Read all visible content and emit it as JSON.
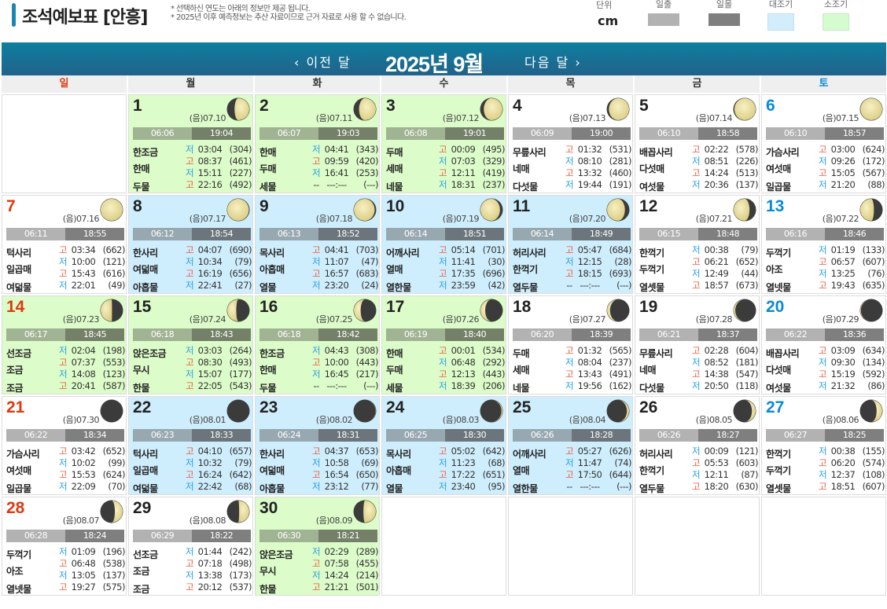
{
  "header": {
    "title": "조석예보표 [안흥]",
    "note1": "* 선택하신 연도는 아래의 정보만 제공 됩니다.",
    "note2": "* 2025년 이후 예측정보는 추산 자료이므로 근거 자료로 사용 할 수 없습니다."
  },
  "legend": {
    "unit_label": "단위",
    "unit_value": "cm",
    "sunrise_label": "일출",
    "sunset_label": "일몰",
    "spring_label": "대조기",
    "neap_label": "소조기",
    "colors": {
      "sunrise": "#b2b2b2",
      "sunset": "#7f7f7f",
      "spring": "#cfeefd",
      "neap": "#d6fcce"
    }
  },
  "nav": {
    "prev": "‹ 이전 달",
    "month": "2025년 9월",
    "next": "다음 달 ›"
  },
  "weekdays": [
    "일",
    "월",
    "화",
    "수",
    "목",
    "금",
    "토"
  ],
  "lunar_prefix": "(음)",
  "colors": {
    "high": "#ea5a3c",
    "low": "#2b9fe2",
    "sunday": "#e0380e",
    "saturday": "#0a8ad6"
  },
  "weeks": [
    [
      null,
      {
        "day": "1",
        "lunar": "07.10",
        "sunrise": "06:06",
        "sunset": "19:04",
        "period": "small",
        "names": [
          "한조금",
          "한매",
          "두물"
        ],
        "tides": [
          [
            "저",
            "03:04",
            "(304)"
          ],
          [
            "고",
            "08:37",
            "(461)"
          ],
          [
            "저",
            "15:11",
            "(227)"
          ],
          [
            "고",
            "22:16",
            "(492)"
          ]
        ]
      },
      {
        "day": "2",
        "lunar": "07.11",
        "sunrise": "06:07",
        "sunset": "19:03",
        "period": "small",
        "names": [
          "한매",
          "두매",
          "세물"
        ],
        "tides": [
          [
            "저",
            "04:41",
            "(343)"
          ],
          [
            "고",
            "09:59",
            "(420)"
          ],
          [
            "저",
            "16:41",
            "(253)"
          ],
          [
            "--",
            "---:---",
            "(---)"
          ]
        ]
      },
      {
        "day": "3",
        "lunar": "07.12",
        "sunrise": "06:08",
        "sunset": "19:01",
        "period": "small",
        "names": [
          "두매",
          "세매",
          "네물"
        ],
        "tides": [
          [
            "고",
            "00:09",
            "(495)"
          ],
          [
            "저",
            "07:03",
            "(329)"
          ],
          [
            "고",
            "12:11",
            "(419)"
          ],
          [
            "저",
            "18:31",
            "(237)"
          ]
        ]
      },
      {
        "day": "4",
        "lunar": "07.13",
        "sunrise": "06:09",
        "sunset": "19:00",
        "period": "",
        "names": [
          "무릎사리",
          "네매",
          "다섯물"
        ],
        "tides": [
          [
            "고",
            "01:32",
            "(531)"
          ],
          [
            "저",
            "08:10",
            "(281)"
          ],
          [
            "고",
            "13:32",
            "(460)"
          ],
          [
            "저",
            "19:44",
            "(191)"
          ]
        ]
      },
      {
        "day": "5",
        "lunar": "07.14",
        "sunrise": "06:10",
        "sunset": "18:58",
        "period": "",
        "names": [
          "배꼽사리",
          "다섯매",
          "여섯물"
        ],
        "tides": [
          [
            "고",
            "02:22",
            "(578)"
          ],
          [
            "저",
            "08:51",
            "(226)"
          ],
          [
            "고",
            "14:24",
            "(513)"
          ],
          [
            "저",
            "20:36",
            "(137)"
          ]
        ]
      },
      {
        "day": "6",
        "lunar": "07.15",
        "sunrise": "06:10",
        "sunset": "18:57",
        "period": "",
        "names": [
          "가슴사리",
          "여섯매",
          "일곱물"
        ],
        "tides": [
          [
            "고",
            "03:00",
            "(624)"
          ],
          [
            "저",
            "09:26",
            "(172)"
          ],
          [
            "고",
            "15:05",
            "(567)"
          ],
          [
            "저",
            "21:20",
            "(88)"
          ]
        ]
      }
    ],
    [
      {
        "day": "7",
        "lunar": "07.16",
        "sunrise": "06:11",
        "sunset": "18:55",
        "period": "",
        "names": [
          "턱사리",
          "일곱매",
          "여덟물"
        ],
        "tides": [
          [
            "고",
            "03:34",
            "(662)"
          ],
          [
            "저",
            "10:00",
            "(121)"
          ],
          [
            "고",
            "15:43",
            "(616)"
          ],
          [
            "저",
            "22:01",
            "(49)"
          ]
        ]
      },
      {
        "day": "8",
        "lunar": "07.17",
        "sunrise": "06:12",
        "sunset": "18:54",
        "period": "big",
        "names": [
          "한사리",
          "여덟매",
          "아홉물"
        ],
        "tides": [
          [
            "고",
            "04:07",
            "(690)"
          ],
          [
            "저",
            "10:34",
            "(79)"
          ],
          [
            "고",
            "16:19",
            "(656)"
          ],
          [
            "저",
            "22:41",
            "(27)"
          ]
        ]
      },
      {
        "day": "9",
        "lunar": "07.18",
        "sunrise": "06:13",
        "sunset": "18:52",
        "period": "big",
        "names": [
          "목사리",
          "아홉매",
          "열물"
        ],
        "tides": [
          [
            "고",
            "04:41",
            "(703)"
          ],
          [
            "저",
            "11:07",
            "(47)"
          ],
          [
            "고",
            "16:57",
            "(683)"
          ],
          [
            "저",
            "23:20",
            "(24)"
          ]
        ]
      },
      {
        "day": "10",
        "lunar": "07.19",
        "sunrise": "06:14",
        "sunset": "18:51",
        "period": "big",
        "names": [
          "어깨사리",
          "열매",
          "열한물"
        ],
        "tides": [
          [
            "고",
            "05:14",
            "(701)"
          ],
          [
            "저",
            "11:41",
            "(30)"
          ],
          [
            "고",
            "17:35",
            "(696)"
          ],
          [
            "저",
            "23:59",
            "(42)"
          ]
        ]
      },
      {
        "day": "11",
        "lunar": "07.20",
        "sunrise": "06:14",
        "sunset": "18:49",
        "period": "big",
        "names": [
          "허리사리",
          "한꺽기",
          "열두물"
        ],
        "tides": [
          [
            "고",
            "05:47",
            "(684)"
          ],
          [
            "저",
            "12:15",
            "(28)"
          ],
          [
            "고",
            "18:15",
            "(693)"
          ],
          [
            "--",
            "---:---",
            "(---)"
          ]
        ]
      },
      {
        "day": "12",
        "lunar": "07.21",
        "sunrise": "06:15",
        "sunset": "18:48",
        "period": "",
        "names": [
          "한꺽기",
          "두꺽기",
          "열셋물"
        ],
        "tides": [
          [
            "저",
            "00:38",
            "(79)"
          ],
          [
            "고",
            "06:21",
            "(652)"
          ],
          [
            "저",
            "12:49",
            "(44)"
          ],
          [
            "고",
            "18:57",
            "(673)"
          ]
        ]
      },
      {
        "day": "13",
        "lunar": "07.22",
        "sunrise": "06:16",
        "sunset": "18:46",
        "period": "",
        "names": [
          "두꺽기",
          "아조",
          "열넷물"
        ],
        "tides": [
          [
            "저",
            "01:19",
            "(133)"
          ],
          [
            "고",
            "06:57",
            "(607)"
          ],
          [
            "저",
            "13:25",
            "(76)"
          ],
          [
            "고",
            "19:43",
            "(635)"
          ]
        ]
      }
    ],
    [
      {
        "day": "14",
        "lunar": "07.23",
        "sunrise": "06:17",
        "sunset": "18:45",
        "period": "small",
        "names": [
          "선조금",
          "조금",
          "조금"
        ],
        "tides": [
          [
            "저",
            "02:04",
            "(198)"
          ],
          [
            "고",
            "07:37",
            "(553)"
          ],
          [
            "저",
            "14:08",
            "(123)"
          ],
          [
            "고",
            "20:41",
            "(587)"
          ]
        ]
      },
      {
        "day": "15",
        "lunar": "07.24",
        "sunrise": "06:18",
        "sunset": "18:43",
        "period": "small",
        "names": [
          "앉은조금",
          "무시",
          "한물"
        ],
        "tides": [
          [
            "저",
            "03:03",
            "(264)"
          ],
          [
            "고",
            "08:30",
            "(493)"
          ],
          [
            "저",
            "15:07",
            "(177)"
          ],
          [
            "고",
            "22:05",
            "(543)"
          ]
        ]
      },
      {
        "day": "16",
        "lunar": "07.25",
        "sunrise": "06:18",
        "sunset": "18:42",
        "period": "small",
        "names": [
          "한조금",
          "한매",
          "두물"
        ],
        "tides": [
          [
            "저",
            "04:43",
            "(308)"
          ],
          [
            "고",
            "10:00",
            "(443)"
          ],
          [
            "저",
            "16:45",
            "(217)"
          ],
          [
            "--",
            "---:---",
            "(---)"
          ]
        ]
      },
      {
        "day": "17",
        "lunar": "07.26",
        "sunrise": "06:19",
        "sunset": "18:40",
        "period": "small",
        "names": [
          "한매",
          "두매",
          "세물"
        ],
        "tides": [
          [
            "고",
            "00:01",
            "(534)"
          ],
          [
            "저",
            "06:48",
            "(292)"
          ],
          [
            "고",
            "12:13",
            "(443)"
          ],
          [
            "저",
            "18:39",
            "(206)"
          ]
        ]
      },
      {
        "day": "18",
        "lunar": "07.27",
        "sunrise": "06:20",
        "sunset": "18:39",
        "period": "",
        "names": [
          "두매",
          "세매",
          "네물"
        ],
        "tides": [
          [
            "고",
            "01:32",
            "(565)"
          ],
          [
            "저",
            "08:04",
            "(237)"
          ],
          [
            "고",
            "13:43",
            "(491)"
          ],
          [
            "저",
            "19:56",
            "(162)"
          ]
        ]
      },
      {
        "day": "19",
        "lunar": "07.28",
        "sunrise": "06:21",
        "sunset": "18:37",
        "period": "",
        "names": [
          "무릎사리",
          "네매",
          "다섯물"
        ],
        "tides": [
          [
            "고",
            "02:28",
            "(604)"
          ],
          [
            "저",
            "08:52",
            "(181)"
          ],
          [
            "고",
            "14:38",
            "(547)"
          ],
          [
            "저",
            "20:50",
            "(118)"
          ]
        ]
      },
      {
        "day": "20",
        "lunar": "07.29",
        "sunrise": "06:22",
        "sunset": "18:36",
        "period": "",
        "names": [
          "배꼽사리",
          "다섯매",
          "여섯물"
        ],
        "tides": [
          [
            "고",
            "03:09",
            "(634)"
          ],
          [
            "저",
            "09:30",
            "(134)"
          ],
          [
            "고",
            "15:19",
            "(592)"
          ],
          [
            "저",
            "21:32",
            "(86)"
          ]
        ]
      }
    ],
    [
      {
        "day": "21",
        "lunar": "07.30",
        "sunrise": "06:22",
        "sunset": "18:34",
        "period": "",
        "names": [
          "가슴사리",
          "여섯매",
          "일곱물"
        ],
        "tides": [
          [
            "고",
            "03:42",
            "(652)"
          ],
          [
            "저",
            "10:02",
            "(99)"
          ],
          [
            "고",
            "15:53",
            "(624)"
          ],
          [
            "저",
            "22:09",
            "(70)"
          ]
        ]
      },
      {
        "day": "22",
        "lunar": "08.01",
        "sunrise": "06:23",
        "sunset": "18:33",
        "period": "big",
        "names": [
          "턱사리",
          "일곱매",
          "여덟물"
        ],
        "tides": [
          [
            "고",
            "04:10",
            "(657)"
          ],
          [
            "저",
            "10:32",
            "(79)"
          ],
          [
            "고",
            "16:24",
            "(642)"
          ],
          [
            "저",
            "22:42",
            "(68)"
          ]
        ]
      },
      {
        "day": "23",
        "lunar": "08.02",
        "sunrise": "06:24",
        "sunset": "18:31",
        "period": "big",
        "names": [
          "한사리",
          "여덟매",
          "아홉물"
        ],
        "tides": [
          [
            "고",
            "04:37",
            "(653)"
          ],
          [
            "저",
            "10:58",
            "(69)"
          ],
          [
            "고",
            "16:54",
            "(650)"
          ],
          [
            "저",
            "23:12",
            "(77)"
          ]
        ]
      },
      {
        "day": "24",
        "lunar": "08.03",
        "sunrise": "06:25",
        "sunset": "18:30",
        "period": "big",
        "names": [
          "목사리",
          "아홉매",
          "열물"
        ],
        "tides": [
          [
            "고",
            "05:02",
            "(642)"
          ],
          [
            "저",
            "11:23",
            "(68)"
          ],
          [
            "고",
            "17:22",
            "(651)"
          ],
          [
            "저",
            "23:40",
            "(95)"
          ]
        ]
      },
      {
        "day": "25",
        "lunar": "08.04",
        "sunrise": "06:26",
        "sunset": "18:28",
        "period": "big",
        "names": [
          "어깨사리",
          "열매",
          "열한물"
        ],
        "tides": [
          [
            "고",
            "05:27",
            "(626)"
          ],
          [
            "저",
            "11:47",
            "(74)"
          ],
          [
            "고",
            "17:50",
            "(644)"
          ],
          [
            "--",
            "---:---",
            "(---)"
          ]
        ]
      },
      {
        "day": "26",
        "lunar": "08.05",
        "sunrise": "06:26",
        "sunset": "18:27",
        "period": "",
        "names": [
          "허리사리",
          "한꺽기",
          "열두물"
        ],
        "tides": [
          [
            "저",
            "00:09",
            "(121)"
          ],
          [
            "고",
            "05:53",
            "(603)"
          ],
          [
            "저",
            "12:11",
            "(87)"
          ],
          [
            "고",
            "18:20",
            "(630)"
          ]
        ]
      },
      {
        "day": "27",
        "lunar": "08.06",
        "sunrise": "06:27",
        "sunset": "18:25",
        "period": "",
        "names": [
          "한꺽기",
          "두꺽기",
          "열셋물"
        ],
        "tides": [
          [
            "저",
            "00:38",
            "(155)"
          ],
          [
            "고",
            "06:20",
            "(574)"
          ],
          [
            "저",
            "12:37",
            "(108)"
          ],
          [
            "고",
            "18:51",
            "(607)"
          ]
        ]
      }
    ],
    [
      {
        "day": "28",
        "lunar": "08.07",
        "sunrise": "06:28",
        "sunset": "18:24",
        "period": "",
        "names": [
          "두꺽기",
          "아조",
          "열넷물"
        ],
        "tides": [
          [
            "저",
            "01:09",
            "(196)"
          ],
          [
            "고",
            "06:48",
            "(538)"
          ],
          [
            "저",
            "13:05",
            "(137)"
          ],
          [
            "고",
            "19:27",
            "(575)"
          ]
        ]
      },
      {
        "day": "29",
        "lunar": "08.08",
        "sunrise": "06:29",
        "sunset": "18:22",
        "period": "",
        "names": [
          "선조금",
          "조금",
          "조금"
        ],
        "tides": [
          [
            "저",
            "01:44",
            "(242)"
          ],
          [
            "고",
            "07:18",
            "(498)"
          ],
          [
            "저",
            "13:38",
            "(173)"
          ],
          [
            "고",
            "20:12",
            "(537)"
          ]
        ]
      },
      {
        "day": "30",
        "lunar": "08.09",
        "sunrise": "06:30",
        "sunset": "18:21",
        "period": "small",
        "names": [
          "앉은조금",
          "무시",
          "한물"
        ],
        "tides": [
          [
            "저",
            "02:29",
            "(289)"
          ],
          [
            "고",
            "07:58",
            "(455)"
          ],
          [
            "저",
            "14:24",
            "(214)"
          ],
          [
            "고",
            "21:21",
            "(501)"
          ]
        ]
      },
      null,
      null,
      null,
      null
    ]
  ]
}
